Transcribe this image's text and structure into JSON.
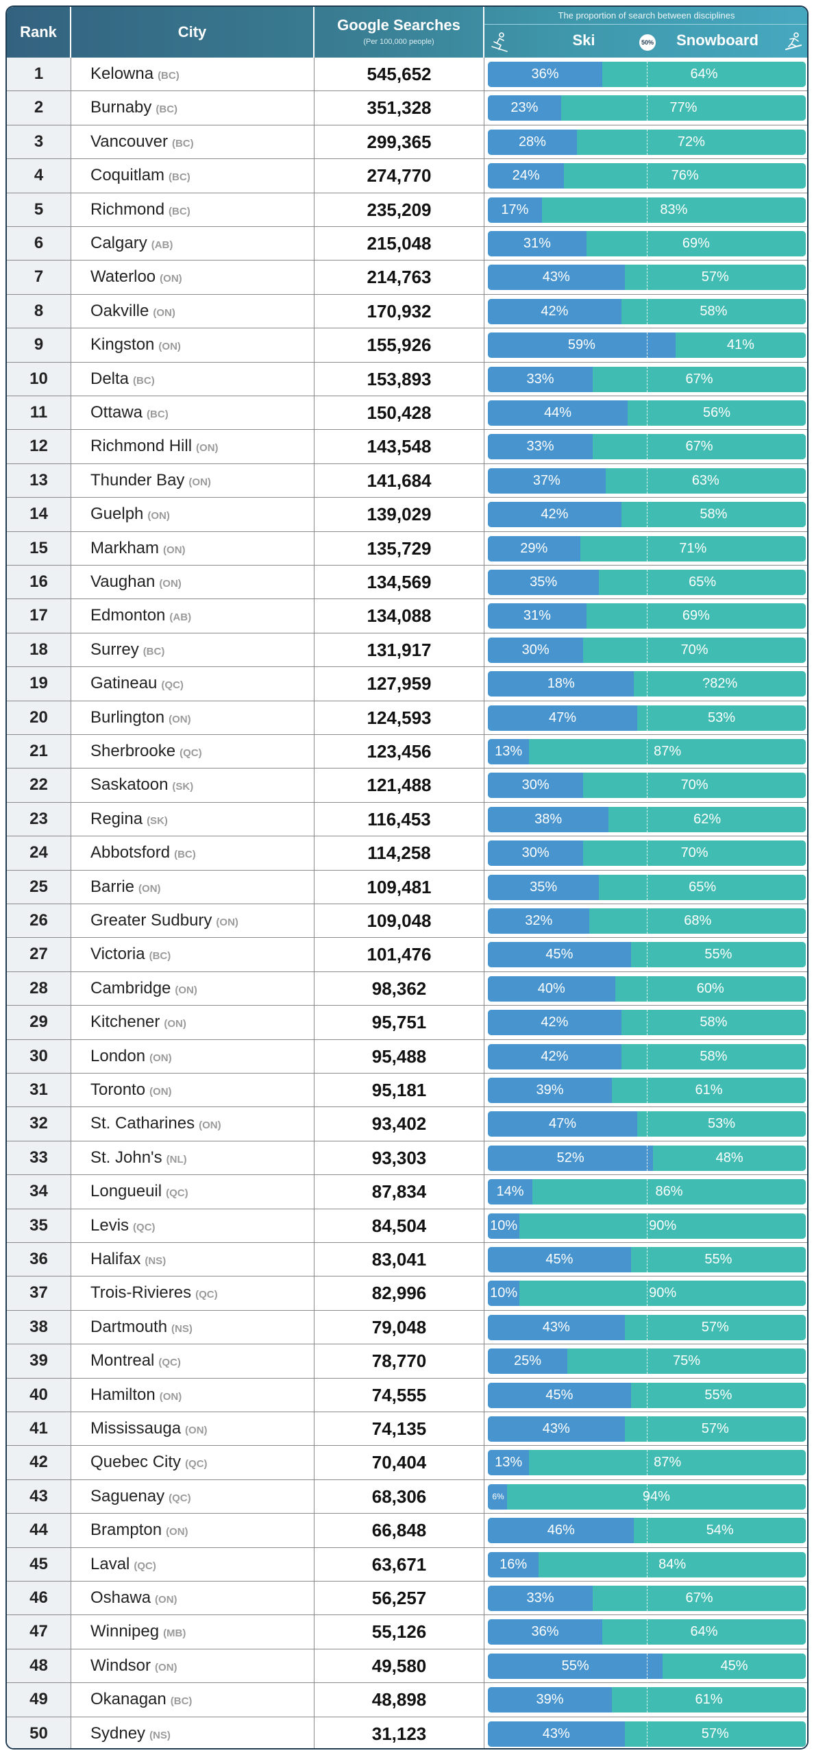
{
  "header": {
    "rank": "Rank",
    "city": "City",
    "searches": "Google Searches",
    "searches_sub": "(Per 100,000 people)",
    "proportion": "The proportion of search between disciplines",
    "ski": "Ski",
    "snowboard": "Snowboard",
    "midpoint": "50%"
  },
  "colors": {
    "ski": "#4894ce",
    "snowboard": "#40bcb2",
    "header_dark": "#33627f",
    "header_light": "#46a8bf"
  },
  "icons": {
    "left": "skier-icon",
    "right": "snowboarder-icon"
  },
  "chart_data": {
    "type": "table",
    "columns": [
      "Rank",
      "City",
      "Google Searches",
      "Ski",
      "Snowboard"
    ],
    "rows": [
      {
        "rank": "1",
        "city": "Kelowna",
        "prov": "(BC)",
        "searches": "545,652",
        "ski": 36,
        "snow": 64
      },
      {
        "rank": "2",
        "city": "Burnaby",
        "prov": "(BC)",
        "searches": "351,328",
        "ski": 23,
        "snow": 77
      },
      {
        "rank": "3",
        "city": "Vancouver",
        "prov": "(BC)",
        "searches": "299,365",
        "ski": 28,
        "snow": 72
      },
      {
        "rank": "4",
        "city": "Coquitlam",
        "prov": "(BC)",
        "searches": "274,770",
        "ski": 24,
        "snow": 76
      },
      {
        "rank": "5",
        "city": "Richmond",
        "prov": "(BC)",
        "searches": "235,209",
        "ski": 17,
        "snow": 83
      },
      {
        "rank": "6",
        "city": "Calgary",
        "prov": "(AB)",
        "searches": "215,048",
        "ski": 31,
        "snow": 69
      },
      {
        "rank": "7",
        "city": "Waterloo",
        "prov": "(ON)",
        "searches": "214,763",
        "ski": 43,
        "snow": 57
      },
      {
        "rank": "8",
        "city": "Oakville",
        "prov": "(ON)",
        "searches": "170,932",
        "ski": 42,
        "snow": 58
      },
      {
        "rank": "9",
        "city": "Kingston",
        "prov": "(ON)",
        "searches": "155,926",
        "ski": 59,
        "snow": 41
      },
      {
        "rank": "10",
        "city": "Delta",
        "prov": "(BC)",
        "searches": "153,893",
        "ski": 33,
        "snow": 67
      },
      {
        "rank": "11",
        "city": "Ottawa",
        "prov": "(BC)",
        "searches": "150,428",
        "ski": 44,
        "snow": 56
      },
      {
        "rank": "12",
        "city": "Richmond Hill",
        "prov": "(ON)",
        "searches": "143,548",
        "ski": 33,
        "snow": 67
      },
      {
        "rank": "13",
        "city": "Thunder Bay",
        "prov": "(ON)",
        "searches": "141,684",
        "ski": 37,
        "snow": 63
      },
      {
        "rank": "14",
        "city": "Guelph",
        "prov": "(ON)",
        "searches": "139,029",
        "ski": 42,
        "snow": 58
      },
      {
        "rank": "15",
        "city": "Markham",
        "prov": "(ON)",
        "searches": "135,729",
        "ski": 29,
        "snow": 71
      },
      {
        "rank": "16",
        "city": "Vaughan",
        "prov": "(ON)",
        "searches": "134,569",
        "ski": 35,
        "snow": 65
      },
      {
        "rank": "17",
        "city": "Edmonton",
        "prov": "(AB)",
        "searches": "134,088",
        "ski": 31,
        "snow": 69
      },
      {
        "rank": "18",
        "city": "Surrey",
        "prov": "(BC)",
        "searches": "131,917",
        "ski": 30,
        "snow": 70
      },
      {
        "rank": "19",
        "city": "Gatineau",
        "prov": "(QC)",
        "searches": "127,959",
        "ski": 18,
        "snow": 82,
        "ski_label": "18%",
        "snow_label": "?82%",
        "ski_bar": 46
      },
      {
        "rank": "20",
        "city": "Burlington",
        "prov": "(ON)",
        "searches": "124,593",
        "ski": 47,
        "snow": 53
      },
      {
        "rank": "21",
        "city": "Sherbrooke",
        "prov": "(QC)",
        "searches": "123,456",
        "ski": 13,
        "snow": 87
      },
      {
        "rank": "22",
        "city": "Saskatoon",
        "prov": "(SK)",
        "searches": "121,488",
        "ski": 30,
        "snow": 70
      },
      {
        "rank": "23",
        "city": "Regina",
        "prov": "(SK)",
        "searches": "116,453",
        "ski": 38,
        "snow": 62
      },
      {
        "rank": "24",
        "city": "Abbotsford",
        "prov": "(BC)",
        "searches": "114,258",
        "ski": 30,
        "snow": 70
      },
      {
        "rank": "25",
        "city": "Barrie",
        "prov": "(ON)",
        "searches": "109,481",
        "ski": 35,
        "snow": 65
      },
      {
        "rank": "26",
        "city": "Greater Sudbury",
        "prov": "(ON)",
        "searches": "109,048",
        "ski": 32,
        "snow": 68
      },
      {
        "rank": "27",
        "city": "Victoria",
        "prov": "(BC)",
        "searches": "101,476",
        "ski": 45,
        "snow": 55
      },
      {
        "rank": "28",
        "city": "Cambridge",
        "prov": "(ON)",
        "searches": "98,362",
        "ski": 40,
        "snow": 60
      },
      {
        "rank": "29",
        "city": "Kitchener",
        "prov": "(ON)",
        "searches": "95,751",
        "ski": 42,
        "snow": 58
      },
      {
        "rank": "30",
        "city": "London",
        "prov": "(ON)",
        "searches": "95,488",
        "ski": 42,
        "snow": 58
      },
      {
        "rank": "31",
        "city": "Toronto",
        "prov": "(ON)",
        "searches": "95,181",
        "ski": 39,
        "snow": 61
      },
      {
        "rank": "32",
        "city": "St. Catharines",
        "prov": "(ON)",
        "searches": "93,402",
        "ski": 47,
        "snow": 53
      },
      {
        "rank": "33",
        "city": "St. John's",
        "prov": "(NL)",
        "searches": "93,303",
        "ski": 52,
        "snow": 48
      },
      {
        "rank": "34",
        "city": "Longueuil",
        "prov": "(QC)",
        "searches": "87,834",
        "ski": 14,
        "snow": 86
      },
      {
        "rank": "35",
        "city": "Levis",
        "prov": "(QC)",
        "searches": "84,504",
        "ski": 10,
        "snow": 90
      },
      {
        "rank": "36",
        "city": "Halifax",
        "prov": "(NS)",
        "searches": "83,041",
        "ski": 45,
        "snow": 55
      },
      {
        "rank": "37",
        "city": "Trois-Rivieres",
        "prov": "(QC)",
        "searches": "82,996",
        "ski": 10,
        "snow": 90
      },
      {
        "rank": "38",
        "city": "Dartmouth",
        "prov": "(NS)",
        "searches": "79,048",
        "ski": 43,
        "snow": 57
      },
      {
        "rank": "39",
        "city": "Montreal",
        "prov": "(QC)",
        "searches": "78,770",
        "ski": 25,
        "snow": 75
      },
      {
        "rank": "40",
        "city": "Hamilton",
        "prov": "(ON)",
        "searches": "74,555",
        "ski": 45,
        "snow": 55
      },
      {
        "rank": "41",
        "city": "Mississauga",
        "prov": "(ON)",
        "searches": "74,135",
        "ski": 43,
        "snow": 57
      },
      {
        "rank": "42",
        "city": "Quebec City",
        "prov": "(QC)",
        "searches": "70,404",
        "ski": 13,
        "snow": 87
      },
      {
        "rank": "43",
        "city": "Saguenay",
        "prov": "(QC)",
        "searches": "68,306",
        "ski": 6,
        "snow": 94
      },
      {
        "rank": "44",
        "city": "Brampton",
        "prov": "(ON)",
        "searches": "66,848",
        "ski": 46,
        "snow": 54
      },
      {
        "rank": "45",
        "city": "Laval",
        "prov": "(QC)",
        "searches": "63,671",
        "ski": 16,
        "snow": 84
      },
      {
        "rank": "46",
        "city": "Oshawa",
        "prov": "(ON)",
        "searches": "56,257",
        "ski": 33,
        "snow": 67
      },
      {
        "rank": "47",
        "city": "Winnipeg",
        "prov": "(MB)",
        "searches": "55,126",
        "ski": 36,
        "snow": 64
      },
      {
        "rank": "48",
        "city": "Windsor",
        "prov": "(ON)",
        "searches": "49,580",
        "ski": 55,
        "snow": 45
      },
      {
        "rank": "49",
        "city": "Okanagan",
        "prov": "(BC)",
        "searches": "48,898",
        "ski": 39,
        "snow": 61
      },
      {
        "rank": "50",
        "city": "Sydney",
        "prov": "(NS)",
        "searches": "31,123",
        "ski": 43,
        "snow": 57
      }
    ]
  }
}
